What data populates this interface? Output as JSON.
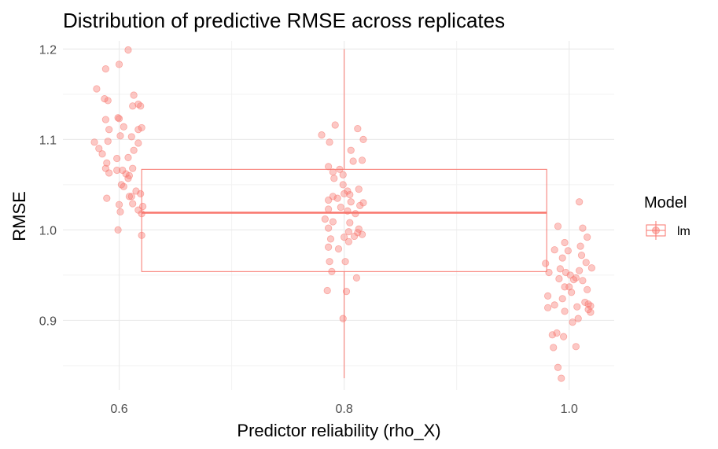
{
  "chart_data": {
    "type": "boxplot-jitter",
    "title": "Distribution of predictive RMSE across replicates",
    "xlabel": "Predictor reliability (rho_X)",
    "ylabel": "RMSE",
    "x_ticks": [
      "0.6",
      "0.8",
      "1.0"
    ],
    "x_tick_values": [
      0.6,
      0.8,
      1.0
    ],
    "y_ticks": [
      "0.9",
      "1.0",
      "1.1",
      "1.2"
    ],
    "y_tick_values": [
      0.9,
      1.0,
      1.1,
      1.2
    ],
    "xlim": [
      0.55,
      1.04
    ],
    "ylim": [
      0.823,
      1.209
    ],
    "grid": true,
    "legend": {
      "title": "Model",
      "position": "right",
      "entries": [
        {
          "label": "lm",
          "color": "#F8766D"
        }
      ]
    },
    "boxplot": {
      "x_center": 0.8,
      "x_range": [
        0.62,
        0.98
      ],
      "q1": 0.954,
      "median": 1.019,
      "q3": 1.067,
      "whisker_low": 0.836,
      "whisker_high": 1.2,
      "color": "#F8766D"
    },
    "series": [
      {
        "name": "lm",
        "color": "#F8766D",
        "points": [
          [
            0.608,
            1.199
          ],
          [
            0.6,
            1.183
          ],
          [
            0.588,
            1.178
          ],
          [
            0.58,
            1.156
          ],
          [
            0.587,
            1.145
          ],
          [
            0.59,
            1.143
          ],
          [
            0.613,
            1.149
          ],
          [
            0.617,
            1.139
          ],
          [
            0.612,
            1.137
          ],
          [
            0.619,
            1.137
          ],
          [
            0.599,
            1.124
          ],
          [
            0.6,
            1.123
          ],
          [
            0.588,
            1.122
          ],
          [
            0.604,
            1.114
          ],
          [
            0.62,
            1.113
          ],
          [
            0.617,
            1.111
          ],
          [
            0.591,
            1.111
          ],
          [
            0.611,
            1.103
          ],
          [
            0.601,
            1.104
          ],
          [
            0.59,
            1.098
          ],
          [
            0.578,
            1.097
          ],
          [
            0.617,
            1.096
          ],
          [
            0.582,
            1.09
          ],
          [
            0.613,
            1.088
          ],
          [
            0.585,
            1.084
          ],
          [
            0.608,
            1.08
          ],
          [
            0.598,
            1.079
          ],
          [
            0.589,
            1.074
          ],
          [
            0.612,
            1.068
          ],
          [
            0.588,
            1.068
          ],
          [
            0.598,
            1.066
          ],
          [
            0.603,
            1.066
          ],
          [
            0.591,
            1.063
          ],
          [
            0.606,
            1.062
          ],
          [
            0.609,
            1.06
          ],
          [
            0.608,
            1.057
          ],
          [
            0.602,
            1.05
          ],
          [
            0.604,
            1.048
          ],
          [
            0.615,
            1.043
          ],
          [
            0.619,
            1.04
          ],
          [
            0.611,
            1.037
          ],
          [
            0.609,
            1.037
          ],
          [
            0.589,
            1.035
          ],
          [
            0.612,
            1.029
          ],
          [
            0.6,
            1.028
          ],
          [
            0.621,
            1.026
          ],
          [
            0.617,
            1.022
          ],
          [
            0.601,
            1.02
          ],
          [
            0.62,
            1.018
          ],
          [
            0.599,
            1.0
          ],
          [
            0.62,
            0.994
          ],
          [
            0.792,
            1.116
          ],
          [
            0.812,
            1.112
          ],
          [
            0.78,
            1.105
          ],
          [
            0.817,
            1.1
          ],
          [
            0.787,
            1.097
          ],
          [
            0.806,
            1.088
          ],
          [
            0.816,
            1.077
          ],
          [
            0.808,
            1.076
          ],
          [
            0.786,
            1.07
          ],
          [
            0.796,
            1.067
          ],
          [
            0.79,
            1.064
          ],
          [
            0.799,
            1.061
          ],
          [
            0.791,
            1.057
          ],
          [
            0.799,
            1.05
          ],
          [
            0.813,
            1.045
          ],
          [
            0.803,
            1.043
          ],
          [
            0.8,
            1.04
          ],
          [
            0.805,
            1.039
          ],
          [
            0.79,
            1.037
          ],
          [
            0.794,
            1.035
          ],
          [
            0.786,
            1.033
          ],
          [
            0.806,
            1.031
          ],
          [
            0.817,
            1.03
          ],
          [
            0.814,
            1.027
          ],
          [
            0.797,
            1.025
          ],
          [
            0.786,
            1.023
          ],
          [
            0.803,
            1.021
          ],
          [
            0.81,
            1.018
          ],
          [
            0.783,
            1.012
          ],
          [
            0.79,
            1.009
          ],
          [
            0.805,
            1.008
          ],
          [
            0.786,
            1.002
          ],
          [
            0.813,
            1.001
          ],
          [
            0.804,
            0.998
          ],
          [
            0.812,
            0.997
          ],
          [
            0.816,
            0.995
          ],
          [
            0.809,
            0.993
          ],
          [
            0.8,
            0.992
          ],
          [
            0.788,
            0.99
          ],
          [
            0.804,
            0.987
          ],
          [
            0.786,
            0.981
          ],
          [
            0.795,
            0.979
          ],
          [
            0.787,
            0.965
          ],
          [
            0.801,
            0.965
          ],
          [
            0.789,
            0.954
          ],
          [
            0.811,
            0.947
          ],
          [
            0.785,
            0.933
          ],
          [
            0.802,
            0.932
          ],
          [
            0.799,
            0.902
          ],
          [
            1.009,
            1.031
          ],
          [
            0.99,
            1.004
          ],
          [
            1.012,
            1.002
          ],
          [
            1.016,
            0.992
          ],
          [
            0.996,
            0.986
          ],
          [
            1.01,
            0.982
          ],
          [
            0.987,
            0.978
          ],
          [
            0.999,
            0.977
          ],
          [
            1.011,
            0.972
          ],
          [
            0.994,
            0.969
          ],
          [
            1.015,
            0.964
          ],
          [
            0.979,
            0.963
          ],
          [
            1.02,
            0.958
          ],
          [
            0.992,
            0.957
          ],
          [
            1.009,
            0.955
          ],
          [
            0.982,
            0.953
          ],
          [
            0.997,
            0.953
          ],
          [
            1.001,
            0.95
          ],
          [
            1.006,
            0.947
          ],
          [
            0.991,
            0.946
          ],
          [
            1.004,
            0.945
          ],
          [
            1.012,
            0.944
          ],
          [
            0.996,
            0.937
          ],
          [
            1.0,
            0.937
          ],
          [
            1.016,
            0.934
          ],
          [
            1.002,
            0.931
          ],
          [
            0.981,
            0.927
          ],
          [
            0.994,
            0.924
          ],
          [
            1.014,
            0.92
          ],
          [
            1.017,
            0.918
          ],
          [
            0.987,
            0.917
          ],
          [
            1.019,
            0.916
          ],
          [
            1.007,
            0.915
          ],
          [
            0.981,
            0.914
          ],
          [
            1.017,
            0.912
          ],
          [
            0.996,
            0.91
          ],
          [
            1.019,
            0.909
          ],
          [
            1.008,
            0.902
          ],
          [
            1.003,
            0.898
          ],
          [
            0.989,
            0.886
          ],
          [
            0.985,
            0.884
          ],
          [
            0.995,
            0.882
          ],
          [
            0.986,
            0.87
          ],
          [
            1.006,
            0.871
          ],
          [
            0.99,
            0.848
          ],
          [
            0.993,
            0.836
          ]
        ]
      }
    ]
  }
}
